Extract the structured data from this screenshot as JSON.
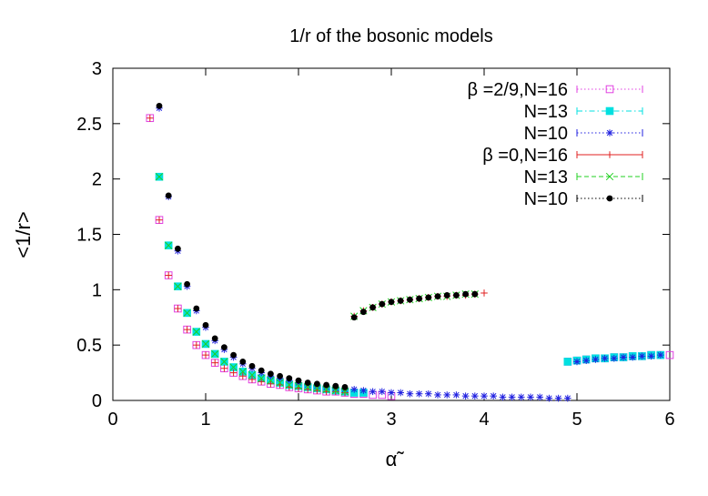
{
  "chart_data": {
    "type": "scatter",
    "title": "1/r of the bosonic models",
    "xlabel": "α̃",
    "ylabel": "<1/r>",
    "xlim": [
      0,
      6
    ],
    "ylim": [
      0,
      3
    ],
    "x_ticks": [
      "0",
      "1",
      "2",
      "3",
      "4",
      "5",
      "6"
    ],
    "y_ticks": [
      "0",
      "0.5",
      "1",
      "1.5",
      "2",
      "2.5",
      "3"
    ],
    "grid": false,
    "legend_position": "top-right",
    "series": [
      {
        "name": "β  =2/9,N=16",
        "color": "#e040e0",
        "marker": "open-square",
        "line": "dotted",
        "x": [
          0.4,
          0.5,
          0.6,
          0.7,
          0.8,
          0.9,
          1.0,
          1.1,
          1.2,
          1.3,
          1.4,
          1.5,
          1.6,
          1.7,
          1.8,
          1.9,
          2.0,
          2.1,
          2.2,
          2.3,
          2.4,
          2.5,
          2.6,
          2.7,
          2.8,
          2.9,
          3.0,
          4.9,
          5.0,
          5.1,
          5.2,
          5.3,
          5.4,
          5.5,
          5.6,
          5.7,
          5.8,
          5.9,
          6.0
        ],
        "y": [
          2.55,
          1.63,
          1.13,
          0.83,
          0.64,
          0.5,
          0.41,
          0.34,
          0.29,
          0.25,
          0.22,
          0.19,
          0.17,
          0.15,
          0.14,
          0.12,
          0.11,
          0.1,
          0.09,
          0.08,
          0.08,
          0.07,
          0.06,
          0.06,
          0.05,
          0.05,
          0.04,
          0.35,
          0.36,
          0.37,
          0.38,
          0.38,
          0.39,
          0.39,
          0.4,
          0.4,
          0.41,
          0.41,
          0.41
        ]
      },
      {
        "name": "N=13",
        "color": "#00e0e0",
        "marker": "filled-square",
        "line": "dash-dot",
        "x": [
          0.5,
          0.6,
          0.7,
          0.8,
          0.9,
          1.0,
          1.1,
          1.2,
          1.3,
          1.4,
          1.5,
          1.6,
          1.7,
          1.8,
          1.9,
          2.0,
          2.1,
          2.2,
          2.3,
          2.4,
          2.5,
          2.6,
          2.7,
          4.9,
          5.0,
          5.1,
          5.2,
          5.3,
          5.4,
          5.5,
          5.6,
          5.7,
          5.8,
          5.9
        ],
        "y": [
          2.02,
          1.4,
          1.03,
          0.79,
          0.62,
          0.51,
          0.42,
          0.35,
          0.3,
          0.26,
          0.23,
          0.2,
          0.18,
          0.16,
          0.14,
          0.13,
          0.12,
          0.11,
          0.1,
          0.09,
          0.08,
          0.07,
          0.07,
          0.35,
          0.36,
          0.37,
          0.38,
          0.38,
          0.39,
          0.39,
          0.4,
          0.4,
          0.41,
          0.41
        ]
      },
      {
        "name": "N=10",
        "color": "#2020e0",
        "marker": "star",
        "line": "dotted",
        "x": [
          0.5,
          0.6,
          0.7,
          0.8,
          0.9,
          1.0,
          1.1,
          1.2,
          1.3,
          1.4,
          1.5,
          1.6,
          1.7,
          1.8,
          1.9,
          2.0,
          2.1,
          2.2,
          2.3,
          2.4,
          2.5,
          2.6,
          2.7,
          2.8,
          2.9,
          3.0,
          3.1,
          3.2,
          3.3,
          3.4,
          3.5,
          3.6,
          3.7,
          3.8,
          3.9,
          4.0,
          4.1,
          4.2,
          4.3,
          4.4,
          4.5,
          4.6,
          4.7,
          4.8,
          4.9,
          5.0,
          5.1,
          5.2,
          5.3,
          5.4,
          5.5,
          5.6,
          5.7,
          5.8,
          5.9
        ],
        "y": [
          2.64,
          1.84,
          1.35,
          1.03,
          0.81,
          0.66,
          0.54,
          0.46,
          0.39,
          0.33,
          0.29,
          0.25,
          0.22,
          0.2,
          0.18,
          0.16,
          0.14,
          0.13,
          0.12,
          0.11,
          0.1,
          0.1,
          0.09,
          0.08,
          0.08,
          0.07,
          0.07,
          0.06,
          0.06,
          0.06,
          0.05,
          0.05,
          0.05,
          0.04,
          0.04,
          0.04,
          0.04,
          0.03,
          0.03,
          0.03,
          0.03,
          0.03,
          0.02,
          0.02,
          0.02,
          0.35,
          0.36,
          0.37,
          0.38,
          0.38,
          0.39,
          0.39,
          0.4,
          0.4,
          0.41
        ]
      },
      {
        "name": "β  =0,N=16",
        "color": "#e02020",
        "marker": "plus",
        "line": "solid",
        "x": [
          0.4,
          0.5,
          0.6,
          0.7,
          0.8,
          0.9,
          1.0,
          1.1,
          1.2,
          1.3,
          1.4,
          1.5,
          1.6,
          1.7,
          1.8,
          1.9,
          2.0,
          2.1,
          2.2,
          2.3,
          2.4,
          2.5,
          2.6,
          2.7,
          2.8,
          2.9,
          3.0,
          3.1,
          3.2,
          3.3,
          3.4,
          3.5,
          3.6,
          3.7,
          3.8,
          3.9,
          4.0
        ],
        "y": [
          2.55,
          1.63,
          1.13,
          0.83,
          0.64,
          0.5,
          0.41,
          0.34,
          0.29,
          0.25,
          0.22,
          0.19,
          0.17,
          0.15,
          0.14,
          0.12,
          0.11,
          0.1,
          0.09,
          0.08,
          0.08,
          0.07,
          0.76,
          0.81,
          0.84,
          0.87,
          0.89,
          0.9,
          0.91,
          0.92,
          0.93,
          0.94,
          0.94,
          0.95,
          0.95,
          0.96,
          0.97
        ]
      },
      {
        "name": "N=13",
        "color": "#20d020",
        "marker": "cross",
        "line": "dashed",
        "x": [
          0.5,
          0.6,
          0.7,
          0.8,
          0.9,
          1.0,
          1.1,
          1.2,
          1.3,
          1.4,
          1.5,
          1.6,
          1.7,
          1.8,
          1.9,
          2.0,
          2.1,
          2.2,
          2.3,
          2.4,
          2.5,
          2.6,
          2.7,
          2.8,
          2.9,
          3.0,
          3.1,
          3.2,
          3.3,
          3.4,
          3.5,
          3.6,
          3.7,
          3.8,
          3.9
        ],
        "y": [
          2.02,
          1.4,
          1.03,
          0.79,
          0.62,
          0.51,
          0.42,
          0.35,
          0.3,
          0.26,
          0.23,
          0.2,
          0.18,
          0.16,
          0.14,
          0.13,
          0.12,
          0.11,
          0.1,
          0.09,
          0.08,
          0.76,
          0.81,
          0.84,
          0.87,
          0.89,
          0.9,
          0.91,
          0.92,
          0.93,
          0.94,
          0.94,
          0.95,
          0.96,
          0.96
        ]
      },
      {
        "name": "N=10",
        "color": "#000000",
        "marker": "filled-circle",
        "line": "dotted",
        "x": [
          0.5,
          0.6,
          0.7,
          0.8,
          0.9,
          1.0,
          1.1,
          1.2,
          1.3,
          1.4,
          1.5,
          1.6,
          1.7,
          1.8,
          1.9,
          2.0,
          2.1,
          2.2,
          2.3,
          2.4,
          2.5,
          2.6,
          2.7,
          2.8,
          2.9,
          3.0,
          3.1,
          3.2,
          3.3,
          3.4,
          3.5,
          3.6,
          3.7,
          3.8,
          3.9
        ],
        "y": [
          2.66,
          1.85,
          1.37,
          1.05,
          0.83,
          0.68,
          0.56,
          0.48,
          0.41,
          0.35,
          0.31,
          0.27,
          0.24,
          0.22,
          0.2,
          0.18,
          0.16,
          0.15,
          0.14,
          0.13,
          0.12,
          0.75,
          0.8,
          0.84,
          0.87,
          0.89,
          0.9,
          0.91,
          0.92,
          0.93,
          0.94,
          0.95,
          0.95,
          0.96,
          0.96
        ]
      }
    ]
  }
}
